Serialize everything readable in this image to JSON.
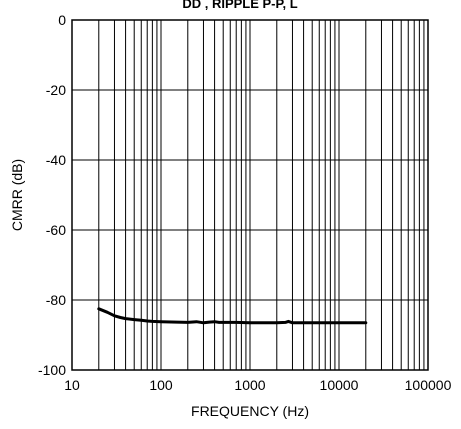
{
  "chart_data": {
    "type": "line",
    "title": "",
    "xlabel": "FREQUENCY (Hz)",
    "ylabel": "CMRR (dB)",
    "xscale": "log",
    "xlim": [
      10,
      100000
    ],
    "ylim": [
      -100,
      0
    ],
    "xticks": [
      10,
      100,
      1000,
      10000,
      100000
    ],
    "xtick_labels": [
      "10",
      "100",
      "1000",
      "10000",
      "100000"
    ],
    "yticks": [
      0,
      -20,
      -40,
      -60,
      -80,
      -100
    ],
    "ytick_labels": [
      "0",
      "-20",
      "-40",
      "-60",
      "-80",
      "-100"
    ],
    "grid": true,
    "series": [
      {
        "x": [
          20,
          25,
          30,
          35,
          40,
          50,
          60,
          70,
          80,
          100,
          150,
          200,
          250,
          300,
          350,
          400,
          450,
          500,
          700,
          1000,
          1500,
          2000,
          2500,
          2700,
          3000,
          4000,
          5000,
          7000,
          10000,
          15000,
          20000
        ],
        "y": [
          -82.5,
          -83.5,
          -84.5,
          -85,
          -85.3,
          -85.6,
          -85.8,
          -86,
          -86.1,
          -86.2,
          -86.3,
          -86.4,
          -86.2,
          -86.5,
          -86.3,
          -86.2,
          -86.4,
          -86.4,
          -86.4,
          -86.5,
          -86.5,
          -86.5,
          -86.4,
          -86.1,
          -86.5,
          -86.5,
          -86.5,
          -86.5,
          -86.5,
          -86.5,
          -86.5
        ],
        "color": "#000000"
      }
    ]
  },
  "header": {
    "clipped_title": "DD        ,  RIPPLE          P-P,     L"
  }
}
